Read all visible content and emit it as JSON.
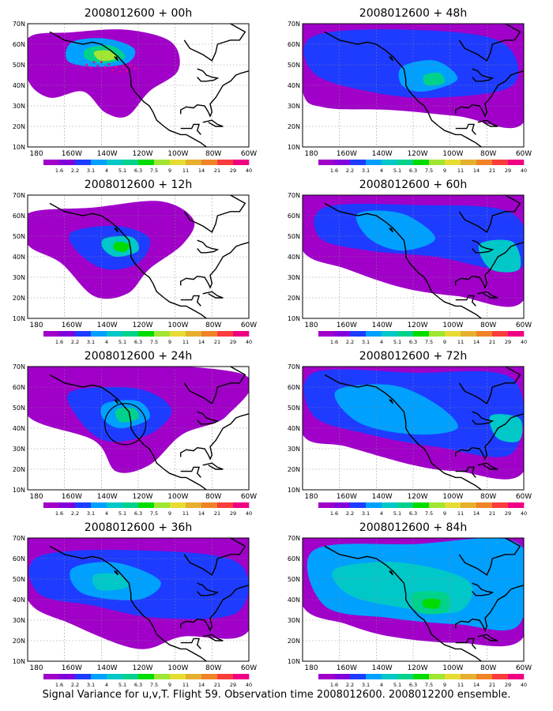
{
  "caption": "Signal Variance for u,v,T. Flight 59. Observation time 2008012600. 2008012200 ensemble.",
  "colorbar": {
    "labels": [
      "1.6",
      "2.2",
      "3.1",
      "4",
      "5.1",
      "6.3",
      "7.5",
      "9",
      "11",
      "14",
      "21",
      "29",
      "40"
    ],
    "colors": [
      "#a000c8",
      "#8200dc",
      "#1e3cff",
      "#00a0ff",
      "#00c8c8",
      "#00d28c",
      "#00dc00",
      "#a0e632",
      "#e6dc32",
      "#e6af2d",
      "#f08228",
      "#fa3c3c",
      "#f00082"
    ]
  },
  "x_ticks": [
    "180",
    "160W",
    "140W",
    "120W",
    "100W",
    "80W",
    "60W"
  ],
  "y_ticks": [
    "10N",
    "20N",
    "30N",
    "40N",
    "50N",
    "60N",
    "70N"
  ],
  "panels": [
    {
      "title": "2008012600 + 00h",
      "annotation": "dots"
    },
    {
      "title": "2008012600 + 48h",
      "annotation": ""
    },
    {
      "title": "2008012600 + 12h",
      "annotation": ""
    },
    {
      "title": "2008012600 + 60h",
      "annotation": ""
    },
    {
      "title": "2008012600 + 24h",
      "annotation": "circle"
    },
    {
      "title": "2008012600 + 72h",
      "annotation": ""
    },
    {
      "title": "2008012600 + 36h",
      "annotation": ""
    },
    {
      "title": "2008012600 + 84h",
      "annotation": ""
    }
  ]
}
